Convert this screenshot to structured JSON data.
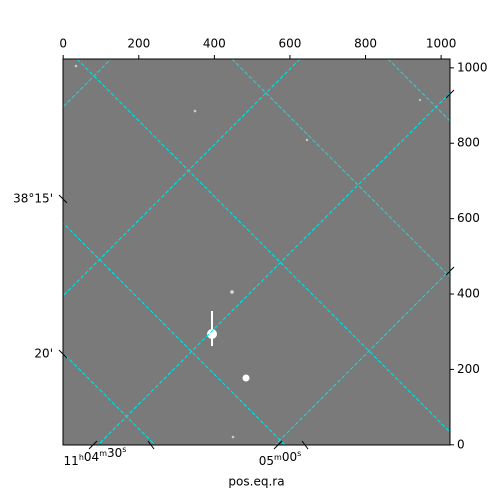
{
  "chart_data": {
    "type": "image",
    "xlabel": "pos.eq.ra",
    "xlim": [
      -0.5,
      1023.5
    ],
    "ylim": [
      -0.5,
      1023.5
    ],
    "xticks": [
      0,
      200,
      400,
      600,
      800,
      1000
    ],
    "yticks": [
      0,
      200,
      400,
      600,
      800,
      1000
    ],
    "ra_labels": [
      "11h04m30s",
      "05m00s"
    ],
    "dec_labels": [
      "38°15'",
      "20'"
    ],
    "grid_color": "#00e5e5",
    "background": "#7a7a7a"
  }
}
